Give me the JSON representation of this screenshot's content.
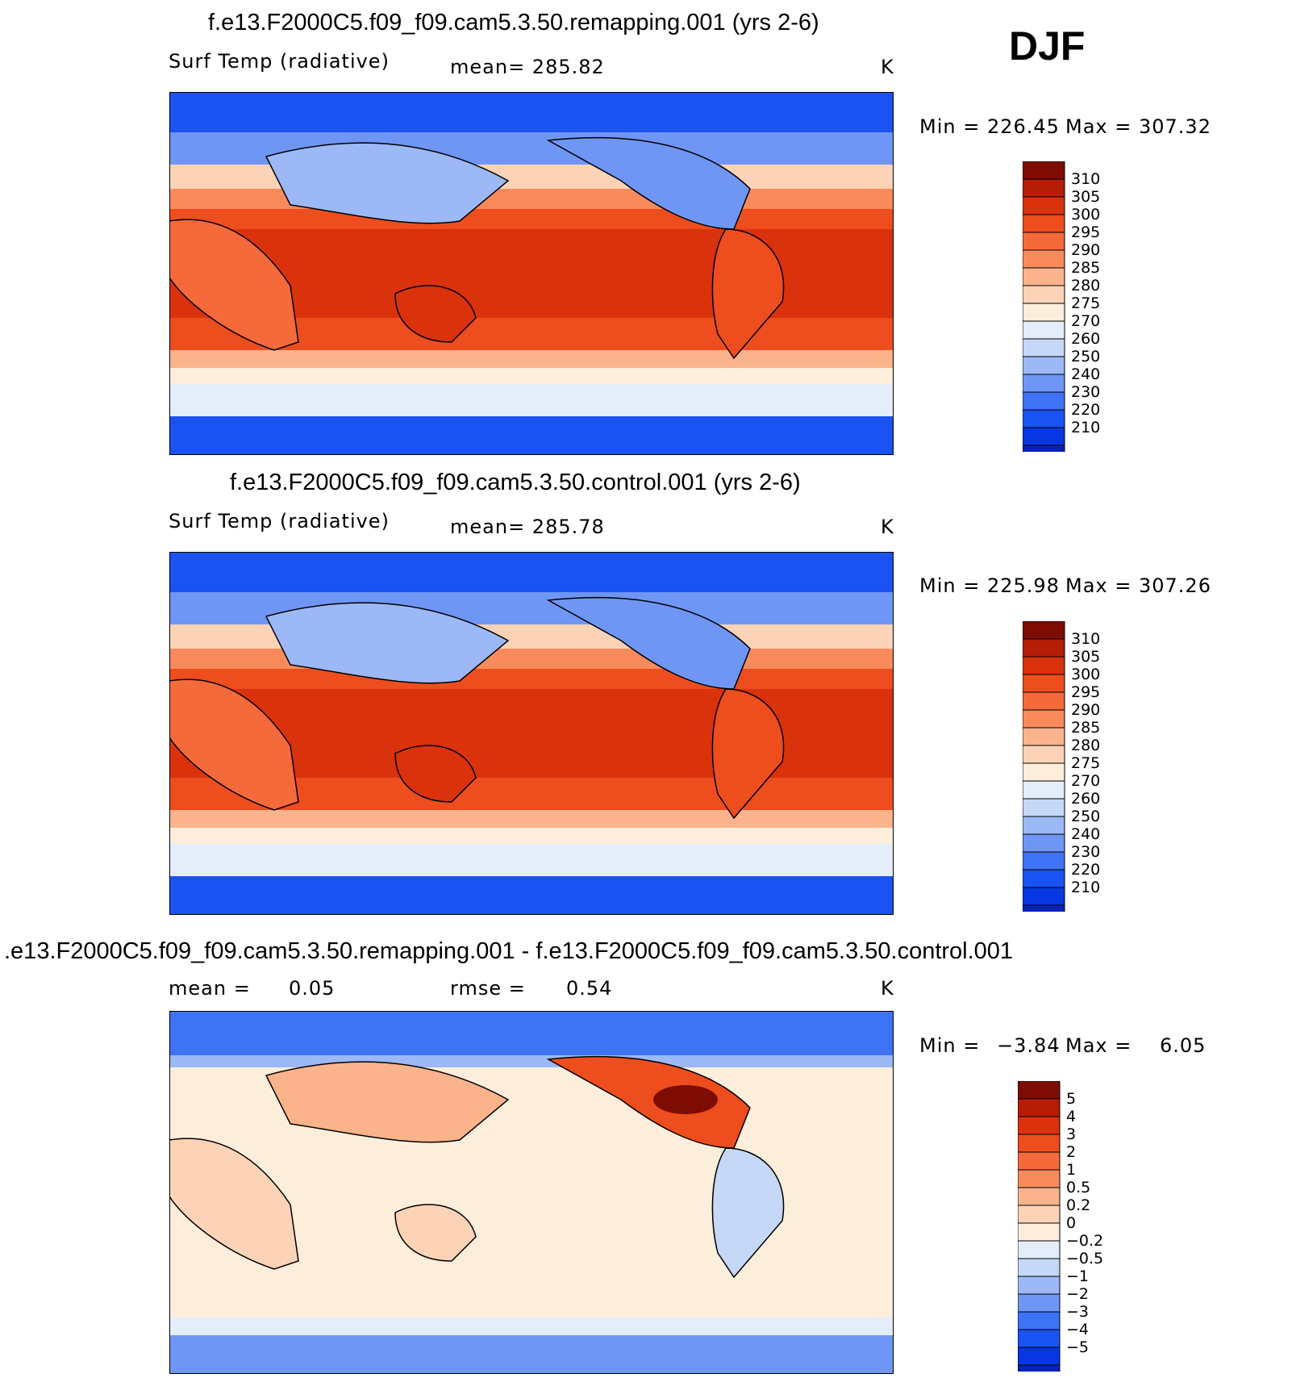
{
  "season": "DJF",
  "colors": {
    "temp_scale": [
      "#0b0b7c",
      "#0623b8",
      "#0737e0",
      "#1a53f2",
      "#3f73f5",
      "#6f96f5",
      "#9cb8f6",
      "#c5d8f7",
      "#e4eefa",
      "#fdeedc",
      "#fcd3b6",
      "#fbb38c",
      "#f88a5c",
      "#f56a3a",
      "#ee4d1d",
      "#d9320c",
      "#b51d06",
      "#7d0c03"
    ],
    "diff_scale": [
      "#0b0b7c",
      "#0623b8",
      "#0737e0",
      "#1a53f2",
      "#3f73f5",
      "#6f96f5",
      "#9cb8f6",
      "#c5d8f7",
      "#e4eefa",
      "#fdeedc",
      "#fcd3b6",
      "#fbb38c",
      "#f88a5c",
      "#f56a3a",
      "#ee4d1d",
      "#d9320c",
      "#b51d06",
      "#7d0c03"
    ],
    "border": "#000000"
  },
  "panels": [
    {
      "title": "f.e13.F2000C5.f09_f09.cam5.3.50.remapping.001 (yrs 2-6)",
      "variable": "Surf Temp (radiative)",
      "stat": "mean=  285.82",
      "units": "K",
      "min_label": "Min  =  226.45",
      "max_label": "Max  =  307.32",
      "colorbar_ticks": [
        "310",
        "305",
        "300",
        "295",
        "290",
        "285",
        "280",
        "275",
        "270",
        "260",
        "250",
        "240",
        "230",
        "220",
        "210"
      ]
    },
    {
      "title": "f.e13.F2000C5.f09_f09.cam5.3.50.control.001 (yrs 2-6)",
      "variable": "Surf Temp (radiative)",
      "stat": "mean=  285.78",
      "units": "K",
      "min_label": "Min  =  225.98",
      "max_label": "Max  =  307.26",
      "colorbar_ticks": [
        "310",
        "305",
        "300",
        "295",
        "290",
        "285",
        "280",
        "275",
        "270",
        "260",
        "250",
        "240",
        "230",
        "220",
        "210"
      ]
    },
    {
      "title": ".e13.F2000C5.f09_f09.cam5.3.50.remapping.001 - f.e13.F2000C5.f09_f09.cam5.3.50.control.001",
      "mean_label": "mean  =",
      "mean_value": "0.05",
      "rmse_label": "rmse  =",
      "rmse_value": "0.54",
      "units": "K",
      "min_label": "Min  =",
      "min_value": "−3.84",
      "max_label": "Max  =",
      "max_value": "6.05",
      "colorbar_ticks": [
        "5",
        "4",
        "3",
        "2",
        "1",
        "0.5",
        "0.2",
        "0",
        "−0.2",
        "−0.5",
        "−1",
        "−2",
        "−3",
        "−4",
        "−5"
      ]
    }
  ]
}
